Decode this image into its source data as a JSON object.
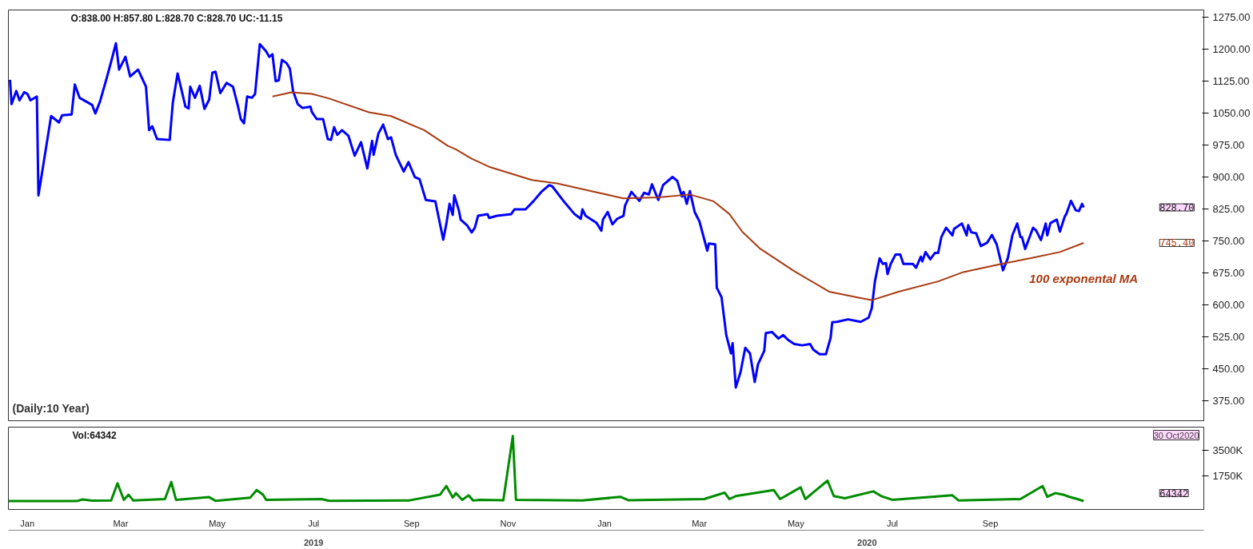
{
  "chart_data": [
    {
      "type": "line",
      "annotations": [
        "O:838.00  H:857.80  L:828.70  C:828.70  UC:-11.15",
        "(Daily:10 Year)",
        "828.70",
        "745.40"
      ],
      "xlim": [
        "2018-12-20",
        "2021-01-14"
      ],
      "ylim": [
        328,
        1292
      ],
      "yticks": [
        {
          "value": 375,
          "label": "375.00"
        },
        {
          "value": 450,
          "label": "450.00"
        },
        {
          "value": 525,
          "label": "525.00"
        },
        {
          "value": 600,
          "label": "600.00"
        },
        {
          "value": 675,
          "label": "675.00"
        },
        {
          "value": 750,
          "label": "750.00"
        },
        {
          "value": 825,
          "label": "825.00"
        },
        {
          "value": 900,
          "label": "900.00"
        },
        {
          "value": 975,
          "label": "975.00"
        },
        {
          "value": 1050,
          "label": "1050.00"
        },
        {
          "value": 1125,
          "label": "1125.00"
        },
        {
          "value": 1200,
          "label": "1200.00"
        },
        {
          "value": 1275,
          "label": "1275.00"
        }
      ],
      "tick_labels": "y",
      "series": [
        {
          "color": "#0000ff",
          "x": [
            "2018-12-21",
            "2018-12-22",
            "2018-12-25",
            "2018-12-27",
            "2018-12-30",
            "2019-01-01",
            "2019-01-03",
            "2019-01-07",
            "2019-01-08",
            "2019-01-16",
            "2019-01-21",
            "2019-01-23",
            "2019-01-29",
            "2019-01-31",
            "2019-02-03",
            "2019-02-11",
            "2019-02-13",
            "2019-02-16",
            "2019-02-20",
            "2019-02-23",
            "2019-02-26",
            "2019-02-28",
            "2019-03-04",
            "2019-03-07",
            "2019-03-12",
            "2019-03-17",
            "2019-03-19",
            "2019-03-21",
            "2019-03-24",
            "2019-04-01",
            "2019-04-03",
            "2019-04-06",
            "2019-04-11",
            "2019-04-13",
            "2019-04-14",
            "2019-04-17",
            "2019-04-20",
            "2019-04-23",
            "2019-04-26",
            "2019-04-28",
            "2019-04-30",
            "2019-05-03",
            "2019-05-07",
            "2019-05-11",
            "2019-05-14",
            "2019-05-16",
            "2019-05-18",
            "2019-05-20",
            "2019-05-23",
            "2019-05-25",
            "2019-05-28",
            "2019-06-01",
            "2019-06-03",
            "2019-06-05",
            "2019-06-07",
            "2019-06-09",
            "2019-06-11",
            "2019-06-14",
            "2019-06-16",
            "2019-06-18",
            "2019-06-21",
            "2019-06-24",
            "2019-06-29",
            "2019-06-30",
            "2019-07-03",
            "2019-07-07",
            "2019-07-10",
            "2019-07-12",
            "2019-07-14",
            "2019-07-16",
            "2019-07-19",
            "2019-07-23",
            "2019-07-27",
            "2019-07-31",
            "2019-08-04",
            "2019-08-07",
            "2019-08-08",
            "2019-08-11",
            "2019-08-14",
            "2019-08-17",
            "2019-08-19",
            "2019-08-22",
            "2019-08-27",
            "2019-08-30",
            "2019-09-03",
            "2019-09-06",
            "2019-09-10",
            "2019-09-16",
            "2019-09-21",
            "2019-09-23",
            "2019-09-25",
            "2019-09-27",
            "2019-09-28",
            "2019-10-01",
            "2019-10-02",
            "2019-10-06",
            "2019-10-09",
            "2019-10-11",
            "2019-10-13",
            "2019-10-19",
            "2019-10-20",
            "2019-10-25",
            "2019-11-03",
            "2019-11-05",
            "2019-11-12",
            "2019-11-17",
            "2019-11-22",
            "2019-11-27",
            "2019-11-29",
            "2019-12-06",
            "2019-12-13",
            "2019-12-17",
            "2019-12-18",
            "2019-12-20",
            "2019-12-27",
            "2019-12-30",
            "2019-12-31",
            "2020-01-03",
            "2020-01-06",
            "2020-01-09",
            "2020-01-13",
            "2020-01-14",
            "2020-01-18",
            "2020-01-23",
            "2020-01-26",
            "2020-01-29",
            "2020-01-31",
            "2020-02-04",
            "2020-02-07",
            "2020-02-13",
            "2020-02-16",
            "2020-02-19",
            "2020-02-20",
            "2020-02-22",
            "2020-02-24",
            "2020-02-27",
            "2020-03-01",
            "2020-03-06",
            "2020-03-07",
            "2020-03-11",
            "2020-03-12",
            "2020-03-15",
            "2020-03-18",
            "2020-03-21",
            "2020-03-22",
            "2020-03-24",
            "2020-03-27",
            "2020-03-30",
            "2020-04-02",
            "2020-04-05",
            "2020-04-07",
            "2020-04-11",
            "2020-04-12",
            "2020-04-16",
            "2020-04-20",
            "2020-04-23",
            "2020-04-26",
            "2020-04-30",
            "2020-05-05",
            "2020-05-10",
            "2020-05-12",
            "2020-05-16",
            "2020-05-20",
            "2020-05-23",
            "2020-05-24",
            "2020-05-27",
            "2020-06-03",
            "2020-06-11",
            "2020-06-16",
            "2020-06-18",
            "2020-06-20",
            "2020-06-22",
            "2020-06-23",
            "2020-06-25",
            "2020-06-27",
            "2020-06-28",
            "2020-06-30",
            "2020-07-03",
            "2020-07-06",
            "2020-07-08",
            "2020-07-14",
            "2020-07-16",
            "2020-07-19",
            "2020-07-20",
            "2020-07-22",
            "2020-07-25",
            "2020-07-28",
            "2020-07-30",
            "2020-08-01",
            "2020-08-04",
            "2020-08-08",
            "2020-08-09",
            "2020-08-14",
            "2020-08-17",
            "2020-08-18",
            "2020-08-20",
            "2020-08-23",
            "2020-08-26",
            "2020-08-30",
            "2020-09-02",
            "2020-09-05",
            "2020-09-09",
            "2020-09-12",
            "2020-09-15",
            "2020-09-18",
            "2020-09-20",
            "2020-09-21",
            "2020-09-23",
            "2020-09-28",
            "2020-09-30",
            "2020-10-03",
            "2020-10-06",
            "2020-10-07",
            "2020-10-09",
            "2020-10-13",
            "2020-10-15",
            "2020-10-18",
            "2020-10-19",
            "2020-10-22",
            "2020-10-25",
            "2020-10-27",
            "2020-10-29",
            "2020-10-30"
          ],
          "values": [
            1128,
            1071,
            1102,
            1080,
            1099,
            1095,
            1080,
            1089,
            857,
            1043,
            1028,
            1045,
            1047,
            1117,
            1086,
            1069,
            1049,
            1078,
            1130,
            1171,
            1214,
            1152,
            1182,
            1136,
            1152,
            1112,
            1010,
            1019,
            989,
            987,
            1075,
            1143,
            1065,
            1061,
            1112,
            1086,
            1114,
            1060,
            1082,
            1145,
            1147,
            1097,
            1121,
            1112,
            1069,
            1036,
            1026,
            1089,
            1086,
            1095,
            1212,
            1195,
            1182,
            1188,
            1125,
            1127,
            1175,
            1167,
            1154,
            1102,
            1071,
            1062,
            1065,
            1052,
            1036,
            1036,
            989,
            987,
            1017,
            999,
            1010,
            997,
            950,
            982,
            920,
            985,
            952,
            1002,
            1023,
            989,
            993,
            952,
            913,
            935,
            900,
            895,
            846,
            843,
            753,
            791,
            837,
            811,
            857,
            820,
            800,
            787,
            770,
            781,
            809,
            813,
            804,
            809,
            813,
            824,
            824,
            843,
            865,
            881,
            878,
            844,
            813,
            802,
            824,
            809,
            792,
            774,
            800,
            818,
            789,
            802,
            809,
            833,
            865,
            844,
            863,
            859,
            883,
            846,
            881,
            900,
            891,
            854,
            865,
            837,
            867,
            818,
            796,
            727,
            744,
            742,
            640,
            618,
            529,
            486,
            510,
            406,
            442,
            499,
            486,
            419,
            460,
            492,
            534,
            536,
            521,
            529,
            518,
            508,
            505,
            508,
            495,
            484,
            484,
            523,
            559,
            560,
            566,
            560,
            570,
            592,
            655,
            692,
            709,
            696,
            698,
            672,
            696,
            718,
            718,
            696,
            696,
            687,
            713,
            702,
            724,
            707,
            722,
            722,
            759,
            781,
            763,
            778,
            791,
            763,
            787,
            770,
            768,
            738,
            746,
            764,
            742,
            681,
            709,
            764,
            791,
            759,
            759,
            731,
            781,
            774,
            752,
            791,
            763,
            792,
            800,
            772,
            807,
            813,
            844,
            822,
            820,
            837,
            828.7
          ]
        },
        {
          "name": "100 exponental MA",
          "color": "#a83a12",
          "x": [
            "2019-06-05",
            "2019-06-17",
            "2019-06-30",
            "2019-07-11",
            "2019-08-05",
            "2019-08-19",
            "2019-09-09",
            "2019-09-24",
            "2019-09-29",
            "2019-10-09",
            "2019-10-20",
            "2019-11-16",
            "2019-12-02",
            "2019-12-26",
            "2020-01-13",
            "2020-02-04",
            "2020-02-24",
            "2020-03-10",
            "2020-03-20",
            "2020-03-28",
            "2020-04-08",
            "2020-04-30",
            "2020-05-22",
            "2020-06-11",
            "2020-06-18",
            "2020-07-05",
            "2020-07-30",
            "2020-08-15",
            "2020-09-08",
            "2020-09-26",
            "2020-10-15",
            "2020-10-30"
          ],
          "values": [
            1089,
            1099,
            1095,
            1084,
            1052,
            1043,
            1010,
            973,
            965,
            943,
            924,
            893,
            885,
            865,
            850,
            852,
            859,
            843,
            813,
            772,
            733,
            679,
            631,
            616,
            611,
            631,
            655,
            677,
            696,
            709,
            724,
            745.4
          ]
        }
      ]
    },
    {
      "type": "line",
      "annotations": [
        "Vol:64342",
        "64342",
        "30 Oct2020"
      ],
      "xlim": [
        "2018-12-20",
        "2021-01-14"
      ],
      "ylim": [
        -500,
        5050
      ],
      "xticks": [
        {
          "value": "2019-01-01",
          "label": "Jan"
        },
        {
          "value": "2019-03-01",
          "label": "Mar"
        },
        {
          "value": "2019-05-01",
          "label": "May"
        },
        {
          "value": "2019-07-01",
          "label": "Jul"
        },
        {
          "value": "2019-09-01",
          "label": "Sep"
        },
        {
          "value": "2019-11-01",
          "label": "Nov"
        },
        {
          "value": "2020-01-01",
          "label": "Jan"
        },
        {
          "value": "2020-03-01",
          "label": "Mar"
        },
        {
          "value": "2020-05-01",
          "label": "May"
        },
        {
          "value": "2020-07-01",
          "label": "Jul"
        },
        {
          "value": "2020-09-01",
          "label": "Sep"
        }
      ],
      "x2lim": [
        "2018-12-20",
        "2021-01-14"
      ],
      "x2ticks": [
        {
          "value": "2019-07-01",
          "label": "2019"
        },
        {
          "value": "2020-06-15",
          "label": "2020"
        }
      ],
      "yticks": [
        {
          "value": 1750,
          "label": "1750K"
        },
        {
          "value": 3500,
          "label": "3500K"
        }
      ],
      "series": [
        {
          "color": "#008c00",
          "x": [
            "2018-12-20",
            "2019-02-01",
            "2019-02-05",
            "2019-02-11",
            "2019-02-23",
            "2019-02-27",
            "2019-03-03",
            "2019-03-06",
            "2019-03-09",
            "2019-03-29",
            "2019-04-02",
            "2019-04-05",
            "2019-04-26",
            "2019-04-30",
            "2019-05-22",
            "2019-05-26",
            "2019-05-30",
            "2019-06-01",
            "2019-07-06",
            "2019-07-11",
            "2019-08-30",
            "2019-09-19",
            "2019-09-23",
            "2019-09-27",
            "2019-09-29",
            "2019-10-03",
            "2019-10-07",
            "2019-10-10",
            "2019-10-14",
            "2019-10-29",
            "2019-11-04",
            "2019-11-06",
            "2019-12-18",
            "2020-01-11",
            "2020-01-16",
            "2020-03-04",
            "2020-03-17",
            "2020-03-20",
            "2020-03-24",
            "2020-04-17",
            "2020-04-21",
            "2020-05-04",
            "2020-05-07",
            "2020-05-21",
            "2020-05-25",
            "2020-06-01",
            "2020-06-19",
            "2020-06-24",
            "2020-07-01",
            "2020-08-08",
            "2020-08-12",
            "2020-09-20",
            "2020-10-04",
            "2020-10-07",
            "2020-10-12",
            "2020-10-17",
            "2020-10-21",
            "2020-10-26",
            "2020-10-30"
          ],
          "values": [
            60,
            60,
            170,
            90,
            110,
            1260,
            150,
            490,
            100,
            200,
            1350,
            150,
            330,
            80,
            300,
            810,
            500,
            150,
            200,
            80,
            100,
            500,
            1080,
            300,
            600,
            150,
            450,
            100,
            150,
            120,
            4450,
            150,
            100,
            350,
            120,
            200,
            630,
            200,
            400,
            810,
            200,
            990,
            200,
            1440,
            400,
            250,
            720,
            400,
            150,
            450,
            100,
            200,
            1080,
            350,
            600,
            500,
            350,
            200,
            64.342
          ]
        }
      ]
    }
  ]
}
